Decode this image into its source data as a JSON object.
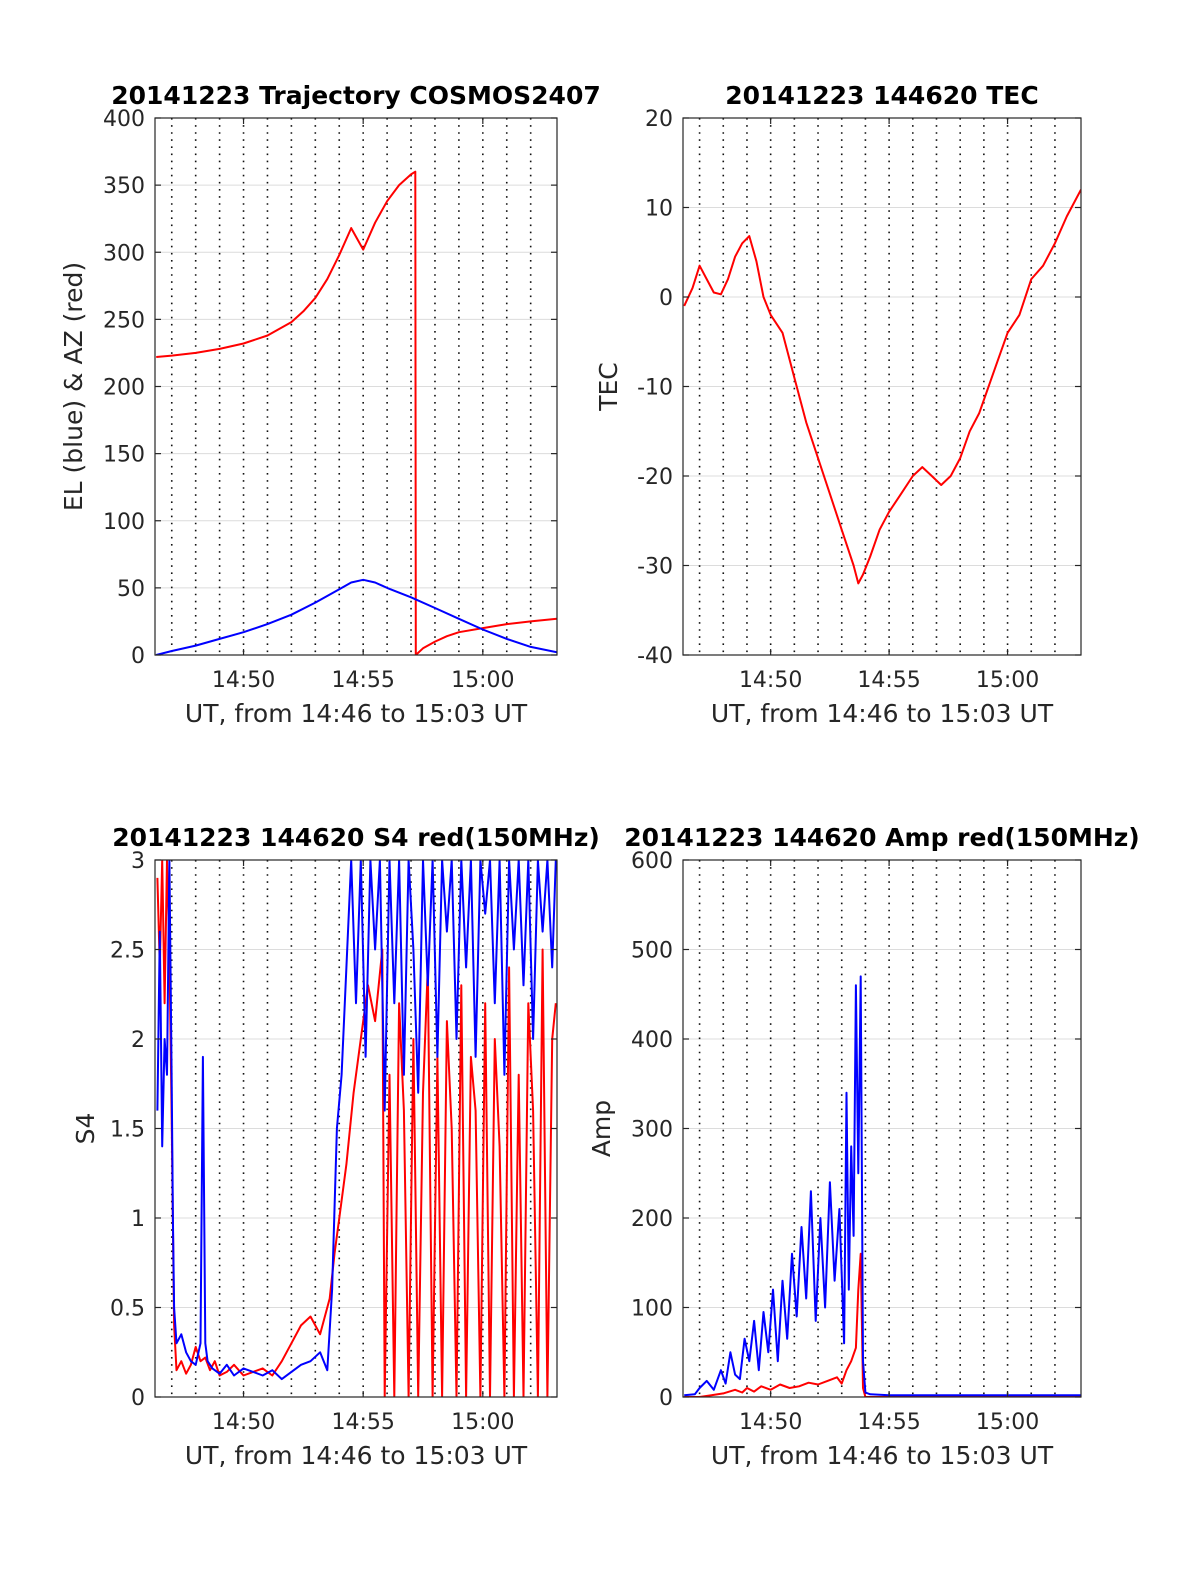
{
  "chart_data": [
    {
      "type": "line",
      "title": "20141223 Trajectory COSMOS2407",
      "xlabel": "UT, from 14:46 to 15:03 UT",
      "ylabel": "EL (blue) & AZ (red)",
      "xlim": [
        46.3,
        63.1
      ],
      "ylim": [
        0,
        400
      ],
      "xticks": [
        50,
        55,
        60
      ],
      "xticklabels": [
        "14:50",
        "14:55",
        "15:00"
      ],
      "yticks": [
        0,
        50,
        100,
        150,
        200,
        250,
        300,
        350,
        400
      ],
      "yticklabels": [
        "0",
        "50",
        "100",
        "150",
        "200",
        "250",
        "300",
        "350",
        "400"
      ],
      "grid": true,
      "series": [
        {
          "color": "#ff0000",
          "x": [
            46.35,
            47,
            48,
            49,
            50,
            51,
            52,
            52.5,
            53,
            53.5,
            54,
            54.5,
            55,
            55.5,
            56,
            56.5,
            57,
            57.18,
            57.2,
            57.5,
            58,
            58.5,
            59,
            60,
            61,
            62,
            63.1
          ],
          "y": [
            222,
            223,
            225,
            228,
            232,
            238,
            248,
            256,
            266,
            280,
            298,
            318,
            302,
            322,
            338,
            350,
            358,
            360,
            0,
            5,
            10,
            14,
            17,
            20,
            23,
            25,
            27
          ]
        },
        {
          "color": "#0000ff",
          "x": [
            46.35,
            47,
            48,
            49,
            50,
            51,
            52,
            53,
            54,
            54.5,
            55,
            55.5,
            56,
            57,
            58,
            59,
            60,
            61,
            62,
            63.1
          ],
          "y": [
            0,
            3,
            7,
            12,
            17,
            23,
            30,
            39,
            49,
            54,
            56,
            54,
            50,
            43,
            35,
            27,
            19,
            12,
            6,
            2
          ]
        }
      ]
    },
    {
      "type": "line",
      "title": "20141223 144620 TEC",
      "xlabel": "UT, from 14:46 to 15:03 UT",
      "ylabel": "TEC",
      "xlim": [
        46.3,
        63.1
      ],
      "ylim": [
        -40,
        20
      ],
      "xticks": [
        50,
        55,
        60
      ],
      "xticklabels": [
        "14:50",
        "14:55",
        "15:00"
      ],
      "yticks": [
        -40,
        -30,
        -20,
        -10,
        0,
        10,
        20
      ],
      "yticklabels": [
        "-40",
        "-30",
        "-20",
        "-10",
        "0",
        "10",
        "20"
      ],
      "grid": true,
      "series": [
        {
          "color": "#ff0000",
          "x": [
            46.35,
            46.7,
            47,
            47.3,
            47.6,
            47.9,
            48.2,
            48.5,
            48.8,
            49.1,
            49.4,
            49.7,
            50,
            50.5,
            51,
            51.5,
            52,
            52.5,
            53,
            53.5,
            53.7,
            53.9,
            54.2,
            54.6,
            55,
            55.5,
            56,
            56.4,
            56.8,
            57.2,
            57.6,
            58,
            58.4,
            58.8,
            59.2,
            59.6,
            60,
            60.5,
            61,
            61.5,
            62,
            62.5,
            63.1
          ],
          "y": [
            -1,
            1,
            3.5,
            2,
            0.5,
            0.3,
            2,
            4.5,
            6,
            6.8,
            4,
            0,
            -2,
            -4,
            -9,
            -14,
            -18,
            -22,
            -26,
            -30,
            -32,
            -31,
            -29,
            -26,
            -24,
            -22,
            -20,
            -19,
            -20,
            -21,
            -20,
            -18,
            -15,
            -13,
            -10,
            -7,
            -4,
            -2,
            2,
            3.5,
            6,
            9,
            12
          ]
        }
      ]
    },
    {
      "type": "line",
      "title": "20141223 144620 S4 red(150MHz)",
      "xlabel": "UT, from 14:46 to 15:03 UT",
      "ylabel": "S4",
      "xlim": [
        46.3,
        63.1
      ],
      "ylim": [
        0,
        3
      ],
      "xticks": [
        50,
        55,
        60
      ],
      "xticklabels": [
        "14:50",
        "14:55",
        "15:00"
      ],
      "yticks": [
        0,
        0.5,
        1,
        1.5,
        2,
        2.5,
        3
      ],
      "yticklabels": [
        "0",
        "0.5",
        "1",
        "1.5",
        "2",
        "2.5",
        "3"
      ],
      "grid": true,
      "series": [
        {
          "color": "#ff0000",
          "x": [
            46.4,
            46.5,
            46.6,
            46.7,
            46.8,
            46.9,
            47,
            47.1,
            47.2,
            47.4,
            47.6,
            47.8,
            48,
            48.2,
            48.4,
            48.6,
            48.8,
            49,
            49.3,
            49.6,
            50,
            50.4,
            50.8,
            51.2,
            51.6,
            52,
            52.4,
            52.8,
            53.2,
            53.6,
            53.8,
            54,
            54.3,
            54.6,
            54.9,
            55.2,
            55.5,
            55.8,
            55.9,
            56.1,
            56.3,
            56.5,
            56.7,
            56.9,
            57.1,
            57.3,
            57.5,
            57.7,
            57.9,
            58.1,
            58.3,
            58.5,
            58.7,
            58.9,
            59.1,
            59.3,
            59.5,
            59.7,
            59.9,
            60.1,
            60.3,
            60.5,
            60.7,
            60.9,
            61.1,
            61.3,
            61.5,
            61.7,
            61.9,
            62.1,
            62.3,
            62.5,
            62.7,
            62.9,
            63.05
          ],
          "y": [
            2.9,
            2.4,
            3,
            2.2,
            3,
            2.5,
            1.5,
            0.4,
            0.15,
            0.2,
            0.13,
            0.18,
            0.28,
            0.2,
            0.22,
            0.15,
            0.2,
            0.12,
            0.14,
            0.18,
            0.12,
            0.14,
            0.16,
            0.12,
            0.2,
            0.3,
            0.4,
            0.45,
            0.35,
            0.55,
            0.8,
            1.0,
            1.3,
            1.7,
            2.0,
            2.3,
            2.1,
            2.5,
            0,
            1.8,
            0,
            2.2,
            1.6,
            0,
            2.0,
            0,
            1.7,
            2.4,
            0,
            1.9,
            0,
            2.1,
            1.5,
            0,
            2.3,
            0,
            1.9,
            1.6,
            0,
            2.2,
            0,
            2.0,
            1.4,
            0,
            2.4,
            0,
            1.8,
            0,
            2.2,
            1.6,
            0,
            2.5,
            0,
            2.0,
            2.2
          ]
        },
        {
          "color": "#0000ff",
          "x": [
            46.4,
            46.5,
            46.6,
            46.7,
            46.8,
            46.9,
            47,
            47.05,
            47.1,
            47.2,
            47.4,
            47.6,
            47.8,
            48,
            48.2,
            48.3,
            48.4,
            48.5,
            48.7,
            49,
            49.3,
            49.6,
            50,
            50.4,
            50.8,
            51.2,
            51.6,
            52,
            52.4,
            52.8,
            53.2,
            53.5,
            53.7,
            53.9,
            54.1,
            54.3,
            54.5,
            54.7,
            54.9,
            55.1,
            55.3,
            55.5,
            55.7,
            55.9,
            56.1,
            56.3,
            56.5,
            56.7,
            56.9,
            57.1,
            57.3,
            57.5,
            57.7,
            57.9,
            58.1,
            58.3,
            58.5,
            58.7,
            58.9,
            59.1,
            59.3,
            59.5,
            59.7,
            59.9,
            60.1,
            60.3,
            60.5,
            60.7,
            60.9,
            61.1,
            61.3,
            61.5,
            61.7,
            61.9,
            62.1,
            62.3,
            62.5,
            62.7,
            62.9,
            63.05
          ],
          "y": [
            1.6,
            2.6,
            1.4,
            2.0,
            1.8,
            3,
            1.7,
            1.0,
            0.5,
            0.3,
            0.35,
            0.25,
            0.2,
            0.18,
            0.3,
            1.9,
            0.3,
            0.2,
            0.16,
            0.13,
            0.18,
            0.12,
            0.16,
            0.14,
            0.12,
            0.15,
            0.1,
            0.14,
            0.18,
            0.2,
            0.25,
            0.15,
            0.6,
            1.5,
            1.8,
            2.4,
            3,
            2.2,
            3,
            1.9,
            3,
            2.5,
            3,
            1.6,
            3,
            2.2,
            3,
            1.8,
            3,
            2.5,
            1.7,
            3,
            2.3,
            3,
            1.9,
            3,
            2.6,
            3,
            2.0,
            3,
            2.4,
            3,
            1.9,
            3,
            2.7,
            3,
            2.2,
            3,
            1.8,
            3,
            2.5,
            3,
            2.3,
            3,
            2.0,
            3,
            2.6,
            3,
            2.4,
            3
          ]
        }
      ]
    },
    {
      "type": "line",
      "title": "20141223 144620 Amp red(150MHz)",
      "xlabel": "UT, from 14:46 to 15:03 UT",
      "ylabel": "Amp",
      "xlim": [
        46.3,
        63.1
      ],
      "ylim": [
        0,
        600
      ],
      "xticks": [
        50,
        55,
        60
      ],
      "xticklabels": [
        "14:50",
        "14:55",
        "15:00"
      ],
      "yticks": [
        0,
        100,
        200,
        300,
        400,
        500,
        600
      ],
      "yticklabels": [
        "0",
        "100",
        "200",
        "300",
        "400",
        "500",
        "600"
      ],
      "grid": true,
      "series": [
        {
          "color": "#ff0000",
          "x": [
            46.35,
            47,
            47.5,
            48,
            48.5,
            48.8,
            49,
            49.3,
            49.6,
            50,
            50.4,
            50.8,
            51.2,
            51.6,
            52,
            52.4,
            52.8,
            53,
            53.2,
            53.4,
            53.6,
            53.7,
            53.8,
            53.9,
            54,
            54.2,
            55,
            56,
            58,
            60,
            63.1
          ],
          "y": [
            0,
            0,
            2,
            4,
            8,
            5,
            10,
            6,
            12,
            8,
            14,
            10,
            12,
            16,
            14,
            18,
            22,
            15,
            30,
            40,
            55,
            120,
            160,
            10,
            0,
            0,
            0,
            0,
            0,
            0,
            0
          ]
        },
        {
          "color": "#0000ff",
          "x": [
            46.35,
            46.8,
            47,
            47.3,
            47.6,
            47.9,
            48.1,
            48.3,
            48.5,
            48.7,
            48.9,
            49.1,
            49.3,
            49.5,
            49.7,
            49.9,
            50.1,
            50.3,
            50.5,
            50.7,
            50.9,
            51.1,
            51.3,
            51.5,
            51.7,
            51.9,
            52.1,
            52.3,
            52.5,
            52.7,
            52.9,
            53.1,
            53.2,
            53.3,
            53.4,
            53.5,
            53.6,
            53.7,
            53.8,
            53.9,
            54,
            54.2,
            55,
            56,
            58,
            60,
            63.1
          ],
          "y": [
            2,
            3,
            10,
            18,
            8,
            30,
            15,
            50,
            25,
            20,
            65,
            40,
            85,
            30,
            95,
            50,
            120,
            40,
            130,
            65,
            160,
            90,
            190,
            110,
            230,
            85,
            200,
            100,
            240,
            130,
            210,
            60,
            340,
            120,
            280,
            180,
            460,
            250,
            470,
            40,
            5,
            3,
            2,
            2,
            2,
            2,
            2
          ]
        }
      ]
    }
  ]
}
